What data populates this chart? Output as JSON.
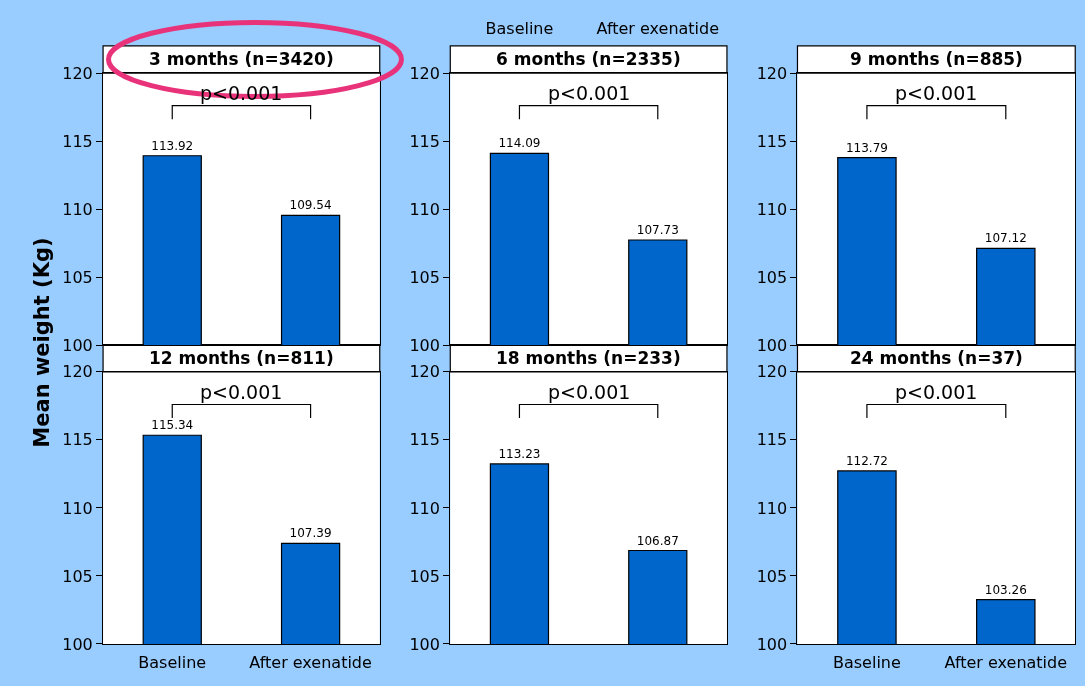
{
  "chart_data": [
    {
      "type": "bar",
      "title": "3 months (n=3420)",
      "ylabel": "Mean weight (Kg)",
      "categories": [
        "Baseline",
        "After exenatide"
      ],
      "values": [
        113.92,
        109.54
      ],
      "color": "#0066cc",
      "ylim": [
        100,
        120
      ],
      "yticks": [
        100,
        105,
        110,
        115,
        120
      ],
      "data_labels": true,
      "annotations": [
        "p<0.001"
      ],
      "tick_labels": "y",
      "grid": false
    },
    {
      "type": "bar",
      "title": "6 months (n=2335)",
      "categories": [
        "Baseline",
        "After exenatide"
      ],
      "values": [
        114.09,
        107.73
      ],
      "color": "#0066cc",
      "ylim": [
        100,
        120
      ],
      "yticks": [
        100,
        105,
        110,
        115,
        120
      ],
      "data_labels": true,
      "annotations": [
        "p<0.001"
      ],
      "grid": false
    },
    {
      "type": "bar",
      "title": "9 months (n=885)",
      "categories": [
        "Baseline",
        "After exenatide"
      ],
      "values": [
        113.79,
        107.12
      ],
      "color": "#0066cc",
      "ylim": [
        100,
        120
      ],
      "yticks": [
        100,
        105,
        110,
        115,
        120
      ],
      "data_labels": true,
      "annotations": [
        "p<0.001"
      ],
      "tick_labels": "y",
      "grid": false
    },
    {
      "type": "bar",
      "title": "12 months (n=811)",
      "categories": [
        "Baseline",
        "After exenatide"
      ],
      "values": [
        115.34,
        107.39
      ],
      "color": "#0066cc",
      "ylim": [
        100,
        120
      ],
      "yticks": [
        100,
        105,
        110,
        115,
        120
      ],
      "data_labels": true,
      "annotations": [
        "p<0.001"
      ],
      "grid": false
    },
    {
      "type": "bar",
      "title": "18 months (n=233)",
      "categories": [
        "Baseline",
        "After exenatide"
      ],
      "values": [
        113.23,
        106.87
      ],
      "color": "#0066cc",
      "ylim": [
        100,
        120
      ],
      "yticks": [
        100,
        105,
        110,
        115,
        120
      ],
      "data_labels": true,
      "annotations": [
        "p<0.001"
      ],
      "tick_labels": "y",
      "grid": false
    },
    {
      "type": "bar",
      "title": "24 months (n=37)",
      "categories": [
        "Baseline",
        "After exenatide"
      ],
      "values": [
        112.72,
        103.26
      ],
      "color": "#0066cc",
      "ylim": [
        100,
        120
      ],
      "yticks": [
        100,
        105,
        110,
        115,
        120
      ],
      "data_labels": true,
      "annotations": [
        "p<0.001"
      ],
      "grid": false
    }
  ]
}
